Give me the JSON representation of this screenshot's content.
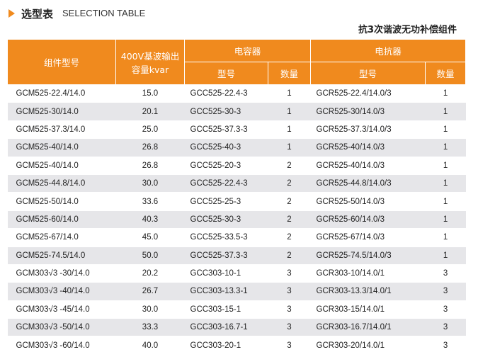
{
  "header": {
    "title": "选型表",
    "subtitle": "SELECTION TABLE",
    "caption": "抗3次谐波无功补偿组件"
  },
  "table": {
    "header": {
      "component_model": "组件型号",
      "capacity": "400V基波输出容量kvar",
      "capacitor": "电容器",
      "reactor": "电抗器",
      "capacitor_model": "型号",
      "capacitor_qty": "数量",
      "reactor_model": "型号",
      "reactor_qty": "数量"
    },
    "rows": [
      [
        "GCM525-22.4/14.0",
        "15.0",
        "GCC525-22.4-3",
        "1",
        "GCR525-22.4/14.0/3",
        "1"
      ],
      [
        "GCM525-30/14.0",
        "20.1",
        "GCC525-30-3",
        "1",
        "GCR525-30/14.0/3",
        "1"
      ],
      [
        "GCM525-37.3/14.0",
        "25.0",
        "GCC525-37.3-3",
        "1",
        "GCR525-37.3/14.0/3",
        "1"
      ],
      [
        "GCM525-40/14.0",
        "26.8",
        "GCC525-40-3",
        "1",
        "GCR525-40/14.0/3",
        "1"
      ],
      [
        "GCM525-40/14.0",
        "26.8",
        "GCC525-20-3",
        "2",
        "GCR525-40/14.0/3",
        "1"
      ],
      [
        "GCM525-44.8/14.0",
        "30.0",
        "GCC525-22.4-3",
        "2",
        "GCR525-44.8/14.0/3",
        "1"
      ],
      [
        "GCM525-50/14.0",
        "33.6",
        "GCC525-25-3",
        "2",
        "GCR525-50/14.0/3",
        "1"
      ],
      [
        "GCM525-60/14.0",
        "40.3",
        "GCC525-30-3",
        "2",
        "GCR525-60/14.0/3",
        "1"
      ],
      [
        "GCM525-67/14.0",
        "45.0",
        "GCC525-33.5-3",
        "2",
        "GCR525-67/14.0/3",
        "1"
      ],
      [
        "GCM525-74.5/14.0",
        "50.0",
        "GCC525-37.3-3",
        "2",
        "GCR525-74.5/14.0/3",
        "1"
      ],
      [
        "GCM303√3 -30/14.0",
        "20.2",
        "GCC303-10-1",
        "3",
        "GCR303-10/14.0/1",
        "3"
      ],
      [
        "GCM303√3 -40/14.0",
        "26.7",
        "GCC303-13.3-1",
        "3",
        "GCR303-13.3/14.0/1",
        "3"
      ],
      [
        "GCM303√3 -45/14.0",
        "30.0",
        "GCC303-15-1",
        "3",
        "GCR303-15/14.0/1",
        "3"
      ],
      [
        "GCM303√3 -50/14.0",
        "33.3",
        "GCC303-16.7-1",
        "3",
        "GCR303-16.7/14.0/1",
        "3"
      ],
      [
        "GCM303√3 -60/14.0",
        "40.0",
        "GCC303-20-1",
        "3",
        "GCR303-20/14.0/1",
        "3"
      ]
    ]
  }
}
